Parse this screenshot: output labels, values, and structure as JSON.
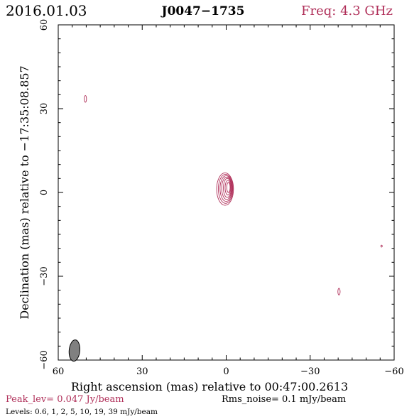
{
  "header": {
    "date": "2016.01.03",
    "source": "J0047−1735",
    "freq": "Freq: 4.3 GHz"
  },
  "footer": {
    "peak": "Peak_lev=  0.047 Jy/beam",
    "rms": "Rms_noise=  0.1 mJy/beam",
    "levels": "Levels: 0.6,   1,   2,   5,  10,  19,  39 mJy/beam"
  },
  "colors": {
    "contour": "#b0305a",
    "beam_fill": "#808080",
    "axis": "#000000"
  },
  "chart_data": {
    "type": "contour",
    "xlabel": "Right ascension (mas) relative to 00:47:00.2613",
    "ylabel": "Declination (mas) relative to −17:35:08.857",
    "xlim": [
      60,
      -60
    ],
    "ylim": [
      -60,
      60
    ],
    "xticks": [
      60,
      30,
      0,
      -30,
      -60
    ],
    "yticks": [
      -60,
      -30,
      0,
      30,
      60
    ],
    "xtick_labels": [
      "60",
      "30",
      "0",
      "−30",
      "−60"
    ],
    "ytick_labels": [
      "−60",
      "−30",
      "0",
      "30",
      "60"
    ],
    "levels_mJy": [
      0.6,
      1,
      2,
      5,
      10,
      19,
      39
    ],
    "peak_Jy_per_beam": 0.047,
    "rms_mJy_per_beam": 0.1,
    "components": [
      {
        "name": "core",
        "center": [
          0.4,
          1.0
        ],
        "contours": [
          {
            "rx": 3.0,
            "ry": 5.8,
            "dx": 0.0,
            "dy": 0.2
          },
          {
            "rx": 2.6,
            "ry": 5.2,
            "dx": -0.2,
            "dy": 0.3
          },
          {
            "rx": 2.2,
            "ry": 4.6,
            "dx": -0.4,
            "dy": 0.4
          },
          {
            "rx": 1.8,
            "ry": 4.0,
            "dx": -0.6,
            "dy": 0.5
          },
          {
            "rx": 1.4,
            "ry": 3.4,
            "dx": -0.8,
            "dy": 0.6
          },
          {
            "rx": 1.0,
            "ry": 2.6,
            "dx": -1.0,
            "dy": 0.7
          },
          {
            "rx": 0.6,
            "ry": 1.8,
            "dx": -1.2,
            "dy": 0.8
          }
        ]
      },
      {
        "name": "feature-a",
        "center": [
          50.3,
          33.5
        ],
        "contours": [
          {
            "rx": 0.4,
            "ry": 1.2,
            "dx": 0,
            "dy": 0
          }
        ]
      },
      {
        "name": "feature-b",
        "center": [
          -40.3,
          -35.5
        ],
        "contours": [
          {
            "rx": 0.4,
            "ry": 1.2,
            "dx": 0,
            "dy": 0
          }
        ]
      },
      {
        "name": "feature-c",
        "center": [
          -55.5,
          -19.2
        ],
        "contours": [
          {
            "rx": 0.25,
            "ry": 0.35,
            "dx": 0,
            "dy": 0
          }
        ]
      }
    ],
    "beam": {
      "center": [
        54.2,
        -56.6
      ],
      "major": 4.2,
      "minor": 1.9,
      "pa_deg": 5
    }
  }
}
